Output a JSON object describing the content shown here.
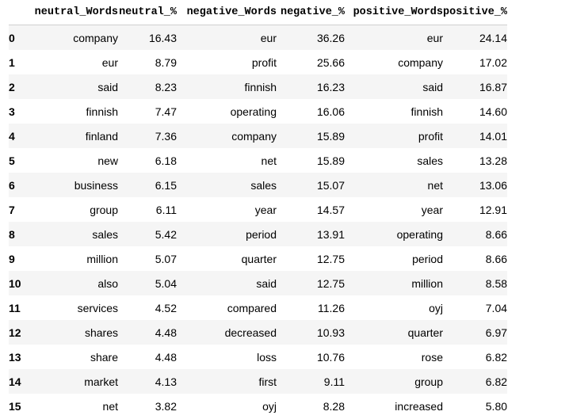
{
  "columns": [
    "",
    "neutral_Words",
    "neutral_%",
    "negative_Words",
    "negative_%",
    "positive_Words",
    "positive_%"
  ],
  "rows": [
    {
      "idx": "0",
      "neutral_words": "company",
      "neutral_pct": "16.43",
      "negative_words": "eur",
      "negative_pct": "36.26",
      "positive_words": "eur",
      "positive_pct": "24.14"
    },
    {
      "idx": "1",
      "neutral_words": "eur",
      "neutral_pct": "8.79",
      "negative_words": "profit",
      "negative_pct": "25.66",
      "positive_words": "company",
      "positive_pct": "17.02"
    },
    {
      "idx": "2",
      "neutral_words": "said",
      "neutral_pct": "8.23",
      "negative_words": "finnish",
      "negative_pct": "16.23",
      "positive_words": "said",
      "positive_pct": "16.87"
    },
    {
      "idx": "3",
      "neutral_words": "finnish",
      "neutral_pct": "7.47",
      "negative_words": "operating",
      "negative_pct": "16.06",
      "positive_words": "finnish",
      "positive_pct": "14.60"
    },
    {
      "idx": "4",
      "neutral_words": "finland",
      "neutral_pct": "7.36",
      "negative_words": "company",
      "negative_pct": "15.89",
      "positive_words": "profit",
      "positive_pct": "14.01"
    },
    {
      "idx": "5",
      "neutral_words": "new",
      "neutral_pct": "6.18",
      "negative_words": "net",
      "negative_pct": "15.89",
      "positive_words": "sales",
      "positive_pct": "13.28"
    },
    {
      "idx": "6",
      "neutral_words": "business",
      "neutral_pct": "6.15",
      "negative_words": "sales",
      "negative_pct": "15.07",
      "positive_words": "net",
      "positive_pct": "13.06"
    },
    {
      "idx": "7",
      "neutral_words": "group",
      "neutral_pct": "6.11",
      "negative_words": "year",
      "negative_pct": "14.57",
      "positive_words": "year",
      "positive_pct": "12.91"
    },
    {
      "idx": "8",
      "neutral_words": "sales",
      "neutral_pct": "5.42",
      "negative_words": "period",
      "negative_pct": "13.91",
      "positive_words": "operating",
      "positive_pct": "8.66"
    },
    {
      "idx": "9",
      "neutral_words": "million",
      "neutral_pct": "5.07",
      "negative_words": "quarter",
      "negative_pct": "12.75",
      "positive_words": "period",
      "positive_pct": "8.66"
    },
    {
      "idx": "10",
      "neutral_words": "also",
      "neutral_pct": "5.04",
      "negative_words": "said",
      "negative_pct": "12.75",
      "positive_words": "million",
      "positive_pct": "8.58"
    },
    {
      "idx": "11",
      "neutral_words": "services",
      "neutral_pct": "4.52",
      "negative_words": "compared",
      "negative_pct": "11.26",
      "positive_words": "oyj",
      "positive_pct": "7.04"
    },
    {
      "idx": "12",
      "neutral_words": "shares",
      "neutral_pct": "4.48",
      "negative_words": "decreased",
      "negative_pct": "10.93",
      "positive_words": "quarter",
      "positive_pct": "6.97"
    },
    {
      "idx": "13",
      "neutral_words": "share",
      "neutral_pct": "4.48",
      "negative_words": "loss",
      "negative_pct": "10.76",
      "positive_words": "rose",
      "positive_pct": "6.82"
    },
    {
      "idx": "14",
      "neutral_words": "market",
      "neutral_pct": "4.13",
      "negative_words": "first",
      "negative_pct": "9.11",
      "positive_words": "group",
      "positive_pct": "6.82"
    },
    {
      "idx": "15",
      "neutral_words": "net",
      "neutral_pct": "3.82",
      "negative_words": "oyj",
      "negative_pct": "8.28",
      "positive_words": "increased",
      "positive_pct": "5.80"
    }
  ]
}
